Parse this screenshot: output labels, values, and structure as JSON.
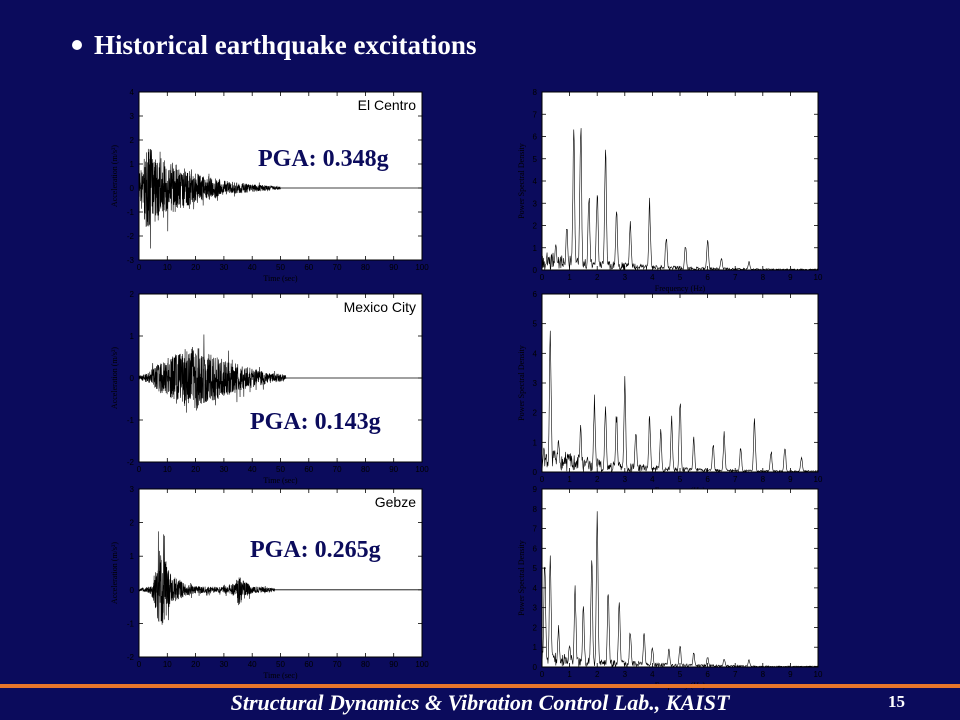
{
  "slide": {
    "title": "Historical earthquake excitations",
    "footer": "Structural Dynamics & Vibration Control Lab., KAIST",
    "page_number": "15"
  },
  "colors": {
    "background": "#0b0b5c",
    "plot_background": "#ffffff",
    "trace": "#ffffff",
    "footer_rule": "#e8762a"
  },
  "chart_data": [
    {
      "type": "line",
      "name": "El Centro acceleration",
      "annotation": "El Centro",
      "pga_label": "PGA: 0.348g",
      "xlabel": "Time (sec)",
      "ylabel": "Acceleration (m/s²)",
      "xlim": [
        0,
        100
      ],
      "ylim": [
        -3,
        4
      ],
      "xticks": [
        0,
        10,
        20,
        30,
        40,
        50,
        60,
        70,
        80,
        90,
        100
      ],
      "yticks": [
        -3,
        -2,
        -1,
        0,
        1,
        2,
        3,
        4
      ],
      "record_end": 50,
      "peak": 3.41,
      "envelope": [
        [
          0,
          1.0
        ],
        [
          2,
          2.5
        ],
        [
          3,
          3.41
        ],
        [
          5,
          2.7
        ],
        [
          8,
          2.4
        ],
        [
          12,
          2.0
        ],
        [
          18,
          1.3
        ],
        [
          25,
          0.9
        ],
        [
          32,
          0.5
        ],
        [
          40,
          0.3
        ],
        [
          50,
          0.1
        ]
      ]
    },
    {
      "type": "line",
      "name": "El Centro PSD",
      "xlabel": "Frequency (Hz)",
      "ylabel": "Power Spectral Density",
      "xlim": [
        0,
        10
      ],
      "ylim": [
        0,
        8
      ],
      "xticks": [
        0,
        1,
        2,
        3,
        4,
        5,
        6,
        7,
        8,
        9,
        10
      ],
      "yticks": [
        0,
        1,
        2,
        3,
        4,
        5,
        6,
        7,
        8
      ],
      "peaks": [
        [
          0.5,
          1.3
        ],
        [
          0.9,
          2.1
        ],
        [
          1.15,
          7.3
        ],
        [
          1.4,
          7.7
        ],
        [
          1.7,
          4.0
        ],
        [
          2.0,
          4.1
        ],
        [
          2.3,
          6.5
        ],
        [
          2.7,
          3.0
        ],
        [
          3.2,
          2.4
        ],
        [
          3.9,
          3.3
        ],
        [
          4.5,
          1.8
        ],
        [
          5.2,
          1.3
        ],
        [
          6.0,
          1.5
        ],
        [
          6.5,
          0.6
        ],
        [
          7.5,
          0.4
        ]
      ]
    },
    {
      "type": "line",
      "name": "Mexico City acceleration",
      "annotation": "Mexico City",
      "pga_label": "PGA: 0.143g",
      "xlabel": "Time (sec)",
      "ylabel": "Acceleration (m/s²)",
      "xlim": [
        0,
        100
      ],
      "ylim": [
        -2,
        2
      ],
      "xticks": [
        0,
        10,
        20,
        30,
        40,
        50,
        60,
        70,
        80,
        90,
        100
      ],
      "yticks": [
        -2,
        -1,
        0,
        1,
        2
      ],
      "record_end": 52,
      "peak": 1.4,
      "envelope": [
        [
          0,
          0.1
        ],
        [
          3,
          0.2
        ],
        [
          6,
          0.55
        ],
        [
          10,
          0.9
        ],
        [
          15,
          1.2
        ],
        [
          20,
          1.4
        ],
        [
          24,
          1.1
        ],
        [
          30,
          0.8
        ],
        [
          36,
          0.6
        ],
        [
          42,
          0.35
        ],
        [
          48,
          0.2
        ],
        [
          52,
          0.12
        ]
      ]
    },
    {
      "type": "line",
      "name": "Mexico City PSD",
      "xlabel": "Frequency (Hz)",
      "ylabel": "Power Spectral Density",
      "xlim": [
        0,
        10
      ],
      "ylim": [
        0,
        6
      ],
      "xticks": [
        0,
        1,
        2,
        3,
        4,
        5,
        6,
        7,
        8,
        9,
        10
      ],
      "yticks": [
        0,
        1,
        2,
        3,
        4,
        5,
        6
      ],
      "peaks": [
        [
          0.3,
          5.4
        ],
        [
          0.6,
          1.2
        ],
        [
          1.4,
          1.7
        ],
        [
          1.9,
          2.7
        ],
        [
          2.3,
          2.6
        ],
        [
          2.7,
          2.2
        ],
        [
          3.0,
          3.4
        ],
        [
          3.4,
          1.7
        ],
        [
          3.9,
          2.1
        ],
        [
          4.3,
          1.5
        ],
        [
          4.7,
          1.9
        ],
        [
          5.0,
          2.8
        ],
        [
          5.5,
          1.3
        ],
        [
          6.2,
          1.1
        ],
        [
          6.6,
          1.4
        ],
        [
          7.2,
          0.9
        ],
        [
          7.7,
          2.0
        ],
        [
          8.3,
          0.8
        ],
        [
          8.8,
          1.0
        ],
        [
          9.4,
          0.6
        ]
      ]
    },
    {
      "type": "line",
      "name": "Gebze acceleration",
      "annotation": "Gebze",
      "pga_label": "PGA: 0.265g",
      "xlabel": "Time (sec)",
      "ylabel": "Acceleration (m/s²)",
      "xlim": [
        0,
        100
      ],
      "ylim": [
        -2,
        3
      ],
      "xticks": [
        0,
        10,
        20,
        30,
        40,
        50,
        60,
        70,
        80,
        90,
        100
      ],
      "yticks": [
        -2,
        -1,
        0,
        1,
        2,
        3
      ],
      "record_end": 48,
      "peak": 2.6,
      "envelope": [
        [
          0,
          0.05
        ],
        [
          4,
          0.2
        ],
        [
          6,
          1.1
        ],
        [
          7,
          2.6
        ],
        [
          9,
          1.8
        ],
        [
          11,
          0.9
        ],
        [
          14,
          0.5
        ],
        [
          20,
          0.2
        ],
        [
          30,
          0.15
        ],
        [
          34,
          0.4
        ],
        [
          35,
          0.9
        ],
        [
          37,
          0.5
        ],
        [
          40,
          0.2
        ],
        [
          48,
          0.1
        ]
      ]
    },
    {
      "type": "line",
      "name": "Gebze PSD",
      "xlabel": "Frequency (Hz)",
      "ylabel": "Power Spectral Density",
      "xlim": [
        0,
        10
      ],
      "ylim": [
        0,
        9
      ],
      "xticks": [
        0,
        1,
        2,
        3,
        4,
        5,
        6,
        7,
        8,
        9,
        10
      ],
      "yticks": [
        0,
        1,
        2,
        3,
        4,
        5,
        6,
        7,
        8,
        9
      ],
      "peaks": [
        [
          0.1,
          5.9
        ],
        [
          0.3,
          6.9
        ],
        [
          0.6,
          2.2
        ],
        [
          1.0,
          1.4
        ],
        [
          1.2,
          4.5
        ],
        [
          1.5,
          3.5
        ],
        [
          1.8,
          6.1
        ],
        [
          2.0,
          8.1
        ],
        [
          2.4,
          4.8
        ],
        [
          2.8,
          3.7
        ],
        [
          3.2,
          2.0
        ],
        [
          3.7,
          1.9
        ],
        [
          4.0,
          1.2
        ],
        [
          4.6,
          1.0
        ],
        [
          5.0,
          1.3
        ],
        [
          5.5,
          0.8
        ],
        [
          6.0,
          0.6
        ],
        [
          6.6,
          0.5
        ],
        [
          7.5,
          0.4
        ]
      ]
    }
  ]
}
